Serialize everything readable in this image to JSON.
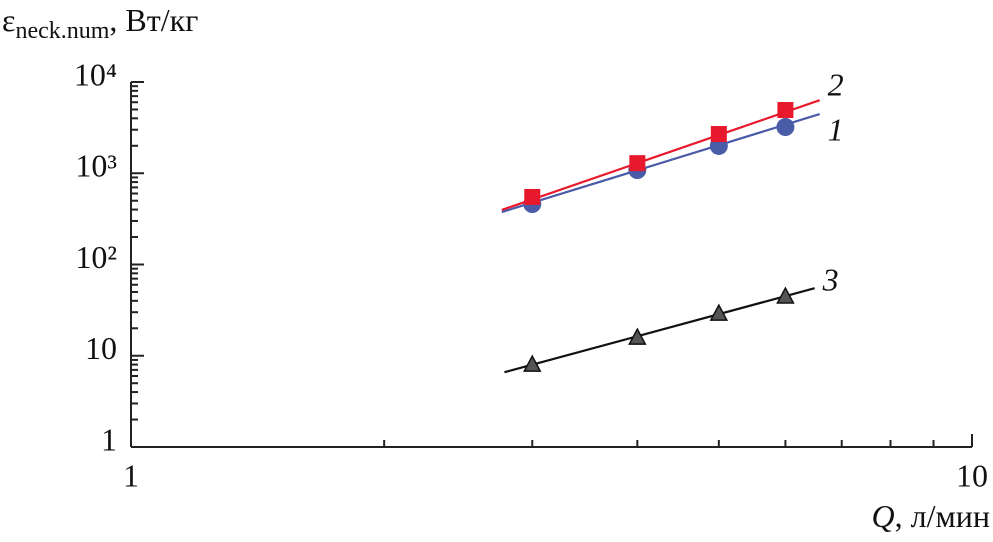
{
  "chart_data": {
    "type": "scatter",
    "ylabel": {
      "symbol": "ε",
      "subscript": "neck.num",
      "unit": ", Вт/кг"
    },
    "xlabel": {
      "symbol": "Q",
      "unit": ", л/мин"
    },
    "log_x": true,
    "log_y": true,
    "xlim": [
      1,
      10
    ],
    "ylim": [
      1,
      10000
    ],
    "xticks": [
      1,
      10
    ],
    "xminorticks": [
      2,
      3,
      4,
      5,
      6,
      7,
      8,
      9
    ],
    "yticks": [
      1,
      10,
      {
        "value": 100,
        "label": "10²"
      },
      {
        "value": 1000,
        "label": "10³"
      },
      {
        "value": 10000,
        "label": "10⁴"
      }
    ],
    "yminorticks": [
      2,
      3,
      4,
      5,
      6,
      7,
      8,
      9,
      20,
      30,
      40,
      50,
      60,
      70,
      80,
      90,
      200,
      300,
      400,
      500,
      600,
      700,
      800,
      900,
      2000,
      3000,
      4000,
      5000,
      6000,
      7000,
      8000,
      9000
    ],
    "x": [
      3,
      4,
      5,
      6
    ],
    "series": [
      {
        "name": "1",
        "color": "#4a5ba8",
        "marker": "circle",
        "values": [
          460,
          1085,
          1990,
          3210
        ],
        "fit": {
          "x": [
            2.76,
            6.59
          ],
          "values": [
            376,
            4450
          ]
        }
      },
      {
        "name": "2",
        "color": "#e8192c",
        "marker": "square",
        "values": [
          550,
          1290,
          2690,
          4930
        ],
        "fit": {
          "x": [
            2.76,
            6.59
          ],
          "values": [
            396,
            6320
          ]
        }
      },
      {
        "name": "3",
        "color": "#555555",
        "marker": "triangle",
        "values": [
          7.9,
          15.6,
          28.6,
          44
        ],
        "fit": {
          "x": [
            2.78,
            6.5
          ],
          "values": [
            6.6,
            55
          ]
        }
      }
    ]
  }
}
